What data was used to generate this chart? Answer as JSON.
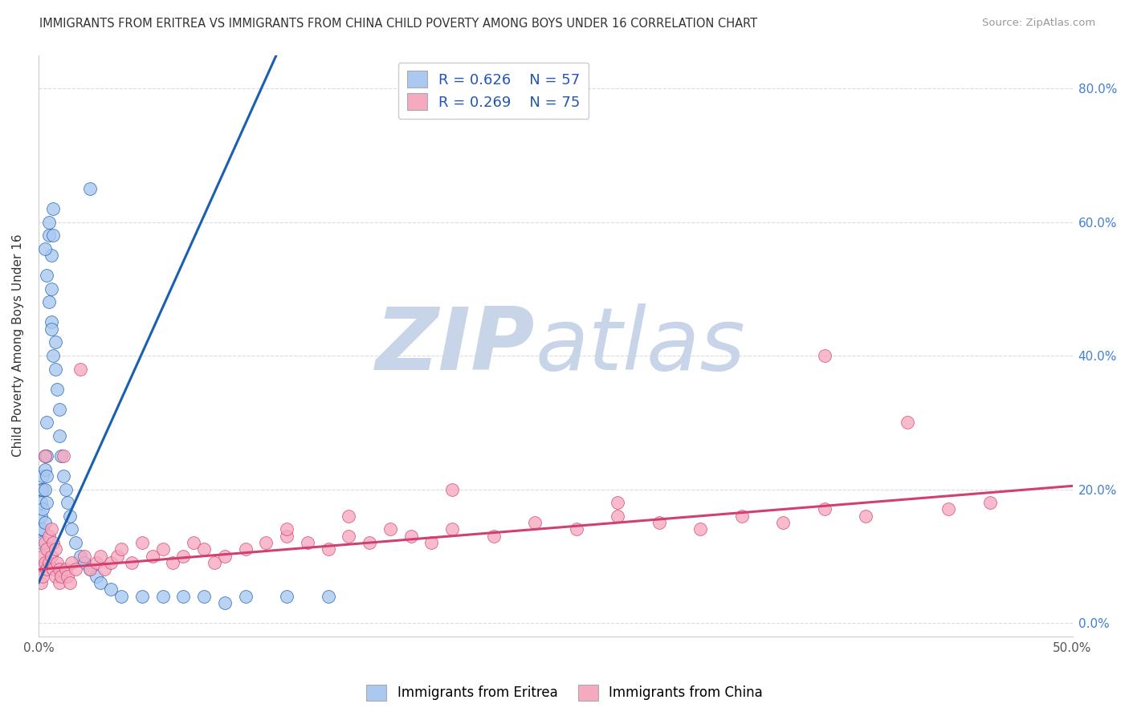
{
  "title": "IMMIGRANTS FROM ERITREA VS IMMIGRANTS FROM CHINA CHILD POVERTY AMONG BOYS UNDER 16 CORRELATION CHART",
  "source": "Source: ZipAtlas.com",
  "ylabel": "Child Poverty Among Boys Under 16",
  "legend_label1": "Immigrants from Eritrea",
  "legend_label2": "Immigrants from China",
  "R1": 0.626,
  "N1": 57,
  "R2": 0.269,
  "N2": 75,
  "color1": "#aac8f0",
  "color2": "#f5aac0",
  "line_color1": "#1a5fb0",
  "line_color2": "#d04070",
  "xlim": [
    0.0,
    0.5
  ],
  "ylim": [
    -0.02,
    0.85
  ],
  "xtick_vals": [
    0.0,
    0.5
  ],
  "xtick_labels": [
    "0.0%",
    "50.0%"
  ],
  "ytick_vals": [
    0.0,
    0.2,
    0.4,
    0.6,
    0.8
  ],
  "ytick_labels_right": [
    "0.0%",
    "20.0%",
    "40.0%",
    "60.0%",
    "80.0%"
  ],
  "scatter1_x": [
    0.001,
    0.001,
    0.001,
    0.001,
    0.001,
    0.002,
    0.002,
    0.002,
    0.002,
    0.003,
    0.003,
    0.003,
    0.003,
    0.004,
    0.004,
    0.004,
    0.004,
    0.005,
    0.005,
    0.006,
    0.006,
    0.006,
    0.007,
    0.007,
    0.008,
    0.008,
    0.009,
    0.01,
    0.01,
    0.011,
    0.012,
    0.013,
    0.014,
    0.015,
    0.016,
    0.018,
    0.02,
    0.022,
    0.025,
    0.028,
    0.03,
    0.035,
    0.04,
    0.05,
    0.06,
    0.07,
    0.08,
    0.09,
    0.1,
    0.12,
    0.14,
    0.025,
    0.003,
    0.004,
    0.005,
    0.006,
    0.007
  ],
  "scatter1_y": [
    0.2,
    0.18,
    0.16,
    0.14,
    0.12,
    0.22,
    0.2,
    0.17,
    0.14,
    0.25,
    0.23,
    0.2,
    0.15,
    0.3,
    0.25,
    0.22,
    0.18,
    0.6,
    0.58,
    0.55,
    0.5,
    0.45,
    0.62,
    0.58,
    0.42,
    0.38,
    0.35,
    0.32,
    0.28,
    0.25,
    0.22,
    0.2,
    0.18,
    0.16,
    0.14,
    0.12,
    0.1,
    0.09,
    0.08,
    0.07,
    0.06,
    0.05,
    0.04,
    0.04,
    0.04,
    0.04,
    0.04,
    0.03,
    0.04,
    0.04,
    0.04,
    0.65,
    0.56,
    0.52,
    0.48,
    0.44,
    0.4
  ],
  "scatter2_x": [
    0.001,
    0.001,
    0.002,
    0.002,
    0.003,
    0.003,
    0.004,
    0.004,
    0.005,
    0.005,
    0.006,
    0.006,
    0.007,
    0.007,
    0.008,
    0.008,
    0.009,
    0.01,
    0.01,
    0.011,
    0.012,
    0.013,
    0.014,
    0.015,
    0.016,
    0.018,
    0.02,
    0.022,
    0.025,
    0.028,
    0.03,
    0.032,
    0.035,
    0.038,
    0.04,
    0.045,
    0.05,
    0.055,
    0.06,
    0.065,
    0.07,
    0.075,
    0.08,
    0.085,
    0.09,
    0.1,
    0.11,
    0.12,
    0.13,
    0.14,
    0.15,
    0.16,
    0.17,
    0.18,
    0.19,
    0.2,
    0.22,
    0.24,
    0.26,
    0.28,
    0.3,
    0.32,
    0.34,
    0.36,
    0.38,
    0.4,
    0.42,
    0.44,
    0.46,
    0.38,
    0.28,
    0.2,
    0.15,
    0.12,
    0.003
  ],
  "scatter2_y": [
    0.08,
    0.06,
    0.1,
    0.07,
    0.12,
    0.09,
    0.11,
    0.08,
    0.13,
    0.09,
    0.14,
    0.1,
    0.12,
    0.08,
    0.11,
    0.07,
    0.09,
    0.08,
    0.06,
    0.07,
    0.25,
    0.08,
    0.07,
    0.06,
    0.09,
    0.08,
    0.38,
    0.1,
    0.08,
    0.09,
    0.1,
    0.08,
    0.09,
    0.1,
    0.11,
    0.09,
    0.12,
    0.1,
    0.11,
    0.09,
    0.1,
    0.12,
    0.11,
    0.09,
    0.1,
    0.11,
    0.12,
    0.13,
    0.12,
    0.11,
    0.13,
    0.12,
    0.14,
    0.13,
    0.12,
    0.14,
    0.13,
    0.15,
    0.14,
    0.16,
    0.15,
    0.14,
    0.16,
    0.15,
    0.17,
    0.16,
    0.3,
    0.17,
    0.18,
    0.4,
    0.18,
    0.2,
    0.16,
    0.14,
    0.25
  ],
  "watermark_zip": "ZIP",
  "watermark_atlas": "atlas",
  "watermark_color": "#c8d4e8",
  "background_color": "#ffffff",
  "grid_color": "#d8d8d8",
  "blue_line_x": [
    0.0,
    0.115
  ],
  "blue_line_y": [
    0.06,
    0.85
  ],
  "pink_line_x": [
    0.0,
    0.5
  ],
  "pink_line_y": [
    0.08,
    0.205
  ]
}
